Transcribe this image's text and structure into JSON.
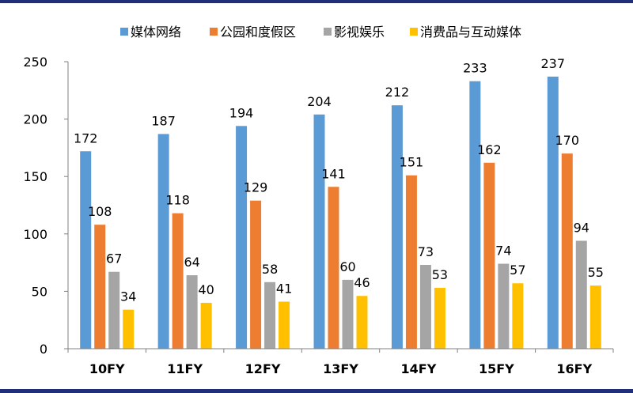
{
  "chart_data": {
    "type": "bar",
    "categories": [
      "10FY",
      "11FY",
      "12FY",
      "13FY",
      "14FY",
      "15FY",
      "16FY"
    ],
    "series": [
      {
        "name": "媒体网络",
        "color": "#5b9bd5",
        "values": [
          172,
          187,
          194,
          204,
          212,
          233,
          237
        ]
      },
      {
        "name": "公园和度假区",
        "color": "#ed7d31",
        "values": [
          108,
          118,
          129,
          141,
          151,
          162,
          170
        ]
      },
      {
        "name": "影视娱乐",
        "color": "#a5a5a5",
        "values": [
          67,
          64,
          58,
          60,
          73,
          74,
          94
        ]
      },
      {
        "name": "消费品与互动媒体",
        "color": "#ffc000",
        "values": [
          34,
          40,
          41,
          46,
          53,
          57,
          55
        ]
      }
    ],
    "title": "",
    "xlabel": "",
    "ylabel": "",
    "ylim": [
      0,
      250
    ],
    "yticks": [
      0,
      50,
      100,
      150,
      200,
      250
    ],
    "legend_position": "top",
    "grid": false,
    "data_labels": true
  }
}
